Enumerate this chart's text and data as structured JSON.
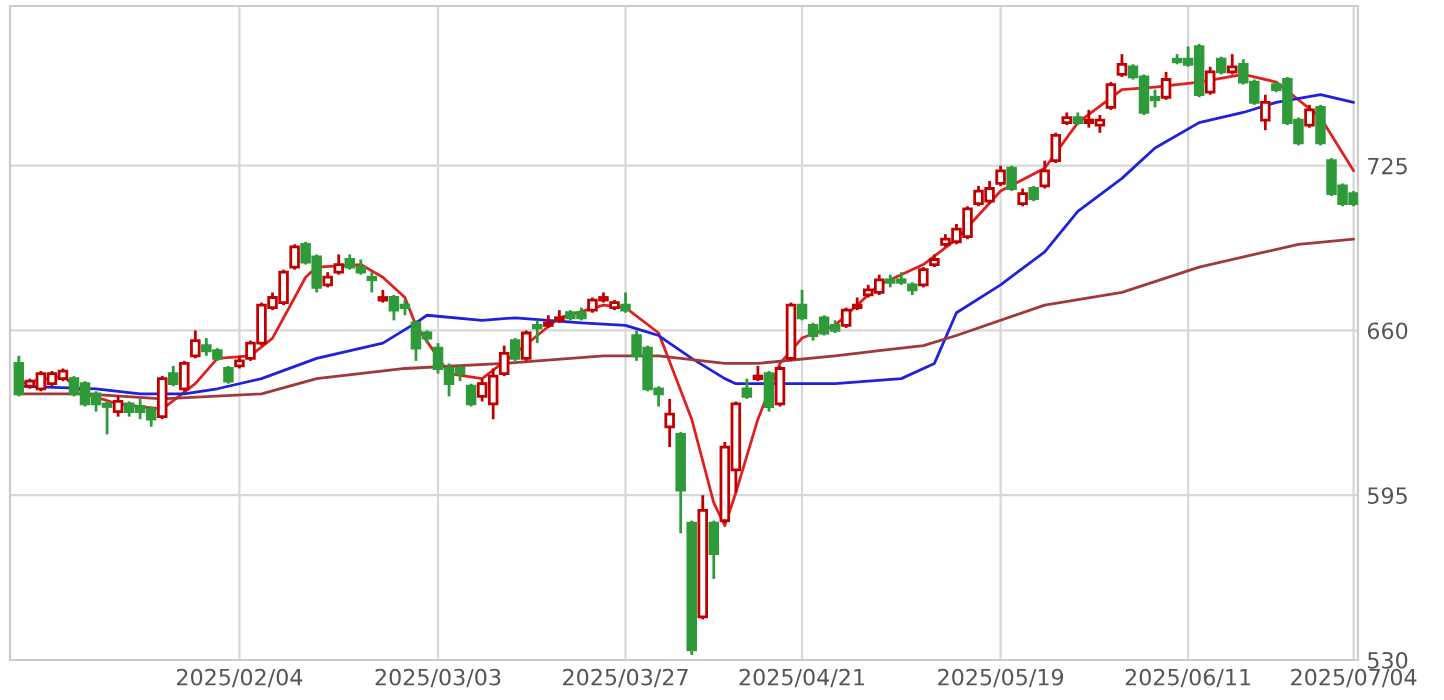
{
  "chart_data": {
    "type": "candlestick",
    "categories": [
      null,
      null,
      null,
      null,
      null,
      null,
      null,
      null,
      null,
      null,
      null,
      null,
      null,
      null,
      null,
      null,
      null,
      null,
      null,
      null,
      "2025/02/04",
      null,
      null,
      null,
      null,
      null,
      null,
      null,
      null,
      null,
      null,
      null,
      null,
      null,
      null,
      null,
      null,
      null,
      "2025/03/03",
      null,
      null,
      null,
      null,
      null,
      null,
      null,
      null,
      null,
      null,
      null,
      null,
      null,
      null,
      null,
      null,
      "2025/03/27",
      null,
      null,
      null,
      null,
      null,
      null,
      null,
      null,
      null,
      null,
      null,
      null,
      null,
      null,
      null,
      "2025/04/21",
      null,
      null,
      null,
      null,
      null,
      null,
      null,
      null,
      null,
      null,
      null,
      null,
      null,
      null,
      null,
      null,
      null,
      "2025/05/19",
      null,
      null,
      null,
      null,
      null,
      null,
      null,
      null,
      null,
      null,
      null,
      null,
      null,
      null,
      null,
      null,
      "2025/06/11",
      null,
      null,
      null,
      null,
      null,
      null,
      null,
      null,
      null,
      null,
      null,
      null,
      null,
      null,
      "2025/07/04"
    ],
    "ohlc": [
      [
        647,
        650,
        634,
        635
      ],
      [
        638,
        641,
        637,
        640
      ],
      [
        637,
        644,
        636,
        643
      ],
      [
        639,
        644,
        638,
        643
      ],
      [
        641,
        645,
        640,
        644
      ],
      [
        641,
        642,
        634,
        635
      ],
      [
        639,
        640,
        630,
        631
      ],
      [
        635,
        636,
        628,
        631
      ],
      [
        631,
        632,
        619,
        630
      ],
      [
        628,
        634,
        626,
        632
      ],
      [
        631,
        632,
        626,
        628
      ],
      [
        630,
        633,
        625,
        628
      ],
      [
        629,
        630,
        622,
        625
      ],
      [
        626,
        642,
        625,
        641
      ],
      [
        643,
        646,
        638,
        639
      ],
      [
        637,
        648,
        636,
        647
      ],
      [
        650,
        660,
        649,
        656
      ],
      [
        654,
        657,
        650,
        652
      ],
      [
        652,
        653,
        648,
        649
      ],
      [
        645,
        646,
        639,
        640
      ],
      [
        646,
        650,
        645,
        648
      ],
      [
        649,
        656,
        648,
        655
      ],
      [
        655,
        671,
        654,
        670
      ],
      [
        669,
        675,
        668,
        673
      ],
      [
        671,
        684,
        670,
        683
      ],
      [
        685,
        694,
        684,
        693
      ],
      [
        694,
        695,
        686,
        687
      ],
      [
        689,
        690,
        675,
        677
      ],
      [
        678,
        683,
        677,
        681
      ],
      [
        683,
        690,
        682,
        686
      ],
      [
        688,
        690,
        684,
        685
      ],
      [
        685,
        688,
        682,
        683
      ],
      [
        681,
        683,
        675,
        680
      ],
      [
        672,
        676,
        671,
        673
      ],
      [
        673,
        674,
        664,
        668
      ],
      [
        670,
        672,
        666,
        669
      ],
      [
        663,
        664,
        648,
        653
      ],
      [
        659,
        660,
        655,
        657
      ],
      [
        653,
        655,
        643,
        645
      ],
      [
        645,
        647,
        634,
        639
      ],
      [
        645,
        646,
        640,
        643
      ],
      [
        638,
        639,
        630,
        631
      ],
      [
        634,
        641,
        632,
        639
      ],
      [
        631,
        645,
        625,
        642
      ],
      [
        643,
        654,
        642,
        651
      ],
      [
        656,
        657,
        648,
        649
      ],
      [
        649,
        660,
        648,
        659
      ],
      [
        662,
        664,
        655,
        661
      ],
      [
        662,
        666,
        661,
        663
      ],
      [
        664,
        668,
        663,
        665
      ],
      [
        667,
        668,
        664,
        665
      ],
      [
        667,
        669,
        664,
        665
      ],
      [
        668,
        673,
        667,
        672
      ],
      [
        672,
        675,
        671,
        673
      ],
      [
        669,
        672,
        668,
        671
      ],
      [
        670,
        675,
        667,
        668
      ],
      [
        658,
        660,
        648,
        650
      ],
      [
        653,
        654,
        636,
        637
      ],
      [
        637,
        638,
        630,
        635
      ],
      [
        622,
        633,
        614,
        627
      ],
      [
        619,
        620,
        580,
        597
      ],
      [
        584,
        585,
        532,
        534
      ],
      [
        547,
        595,
        546,
        589
      ],
      [
        584,
        585,
        562,
        572
      ],
      [
        585,
        616,
        584,
        614
      ],
      [
        605,
        632,
        596,
        631
      ],
      [
        637,
        641,
        633,
        634
      ],
      [
        641,
        646,
        640,
        642
      ],
      [
        643,
        644,
        628,
        630
      ],
      [
        631,
        646,
        630,
        645
      ],
      [
        649,
        671,
        648,
        670
      ],
      [
        670,
        676,
        664,
        665
      ],
      [
        662,
        663,
        656,
        658
      ],
      [
        665,
        666,
        658,
        659
      ],
      [
        662,
        664,
        659,
        660
      ],
      [
        662,
        669,
        661,
        668
      ],
      [
        669,
        673,
        668,
        670
      ],
      [
        674,
        678,
        673,
        676
      ],
      [
        675,
        682,
        674,
        680
      ],
      [
        680,
        682,
        677,
        679
      ],
      [
        680,
        683,
        678,
        679
      ],
      [
        678,
        679,
        674,
        676
      ],
      [
        678,
        685,
        677,
        684
      ],
      [
        686,
        690,
        685,
        688
      ],
      [
        694,
        698,
        693,
        696
      ],
      [
        695,
        702,
        694,
        700
      ],
      [
        697,
        709,
        696,
        708
      ],
      [
        710,
        717,
        709,
        715
      ],
      [
        711,
        719,
        710,
        716
      ],
      [
        718,
        725,
        717,
        723
      ],
      [
        724,
        725,
        715,
        716
      ],
      [
        710,
        716,
        709,
        714
      ],
      [
        716,
        717,
        711,
        712
      ],
      [
        717,
        727,
        716,
        723
      ],
      [
        727,
        738,
        726,
        737
      ],
      [
        742,
        746,
        741,
        744
      ],
      [
        744,
        746,
        741,
        742
      ],
      [
        742,
        747,
        740,
        743
      ],
      [
        741,
        745,
        738,
        743
      ],
      [
        748,
        758,
        747,
        757
      ],
      [
        761,
        769,
        760,
        765
      ],
      [
        764,
        765,
        759,
        760
      ],
      [
        760,
        761,
        745,
        746
      ],
      [
        752,
        755,
        748,
        751
      ],
      [
        752,
        762,
        751,
        759
      ],
      [
        767,
        769,
        765,
        766
      ],
      [
        767,
        772,
        764,
        765
      ],
      [
        772,
        773,
        752,
        753
      ],
      [
        754,
        764,
        753,
        762
      ],
      [
        767,
        768,
        761,
        762
      ],
      [
        762,
        769,
        761,
        764
      ],
      [
        765,
        767,
        757,
        758
      ],
      [
        758,
        759,
        749,
        750
      ],
      [
        743,
        753,
        739,
        750
      ],
      [
        757,
        758,
        754,
        755
      ],
      [
        759,
        760,
        741,
        742
      ],
      [
        743,
        744,
        733,
        734
      ],
      [
        741,
        749,
        740,
        747
      ],
      [
        748,
        749,
        733,
        734
      ],
      [
        727,
        728,
        713,
        714
      ],
      [
        717,
        718,
        709,
        710
      ],
      [
        714,
        715,
        709,
        710
      ]
    ],
    "series": [
      {
        "type": "line",
        "color": "#e02020",
        "values": [
          639,
          null,
          null,
          null,
          642,
          null,
          635,
          null,
          null,
          631,
          null,
          null,
          null,
          629,
          null,
          null,
          639,
          null,
          649,
          null,
          null,
          650,
          null,
          657,
          null,
          null,
          681,
          685,
          null,
          null,
          null,
          686,
          null,
          681,
          null,
          673,
          662,
          null,
          null,
          643,
          null,
          null,
          641,
          null,
          null,
          651,
          null,
          null,
          null,
          665,
          null,
          null,
          null,
          670,
          null,
          669,
          null,
          null,
          659,
          null,
          null,
          625,
          null,
          592,
          583,
          596,
          null,
          625,
          null,
          647,
          null,
          657,
          null,
          null,
          662,
          null,
          null,
          null,
          678,
          null,
          null,
          null,
          686,
          null,
          null,
          696,
          null,
          null,
          null,
          715,
          null,
          null,
          null,
          724,
          null,
          null,
          742,
          null,
          null,
          null,
          755,
          null,
          null,
          756,
          null,
          null,
          null,
          758,
          null,
          null,
          null,
          761,
          null,
          null,
          758,
          null,
          null,
          null,
          744,
          null,
          null,
          723
        ]
      },
      {
        "type": "line",
        "color": "#2020dd",
        "values": [
          638,
          null,
          null,
          null,
          null,
          null,
          null,
          637,
          null,
          null,
          null,
          635,
          null,
          null,
          null,
          635,
          null,
          null,
          637,
          null,
          null,
          null,
          641,
          null,
          null,
          null,
          null,
          649,
          null,
          null,
          null,
          null,
          null,
          655,
          null,
          null,
          663,
          666,
          null,
          null,
          null,
          null,
          664,
          null,
          null,
          665,
          null,
          null,
          null,
          null,
          null,
          663,
          null,
          null,
          null,
          662,
          null,
          null,
          658,
          null,
          null,
          649,
          null,
          null,
          641,
          639,
          null,
          null,
          639,
          null,
          null,
          null,
          null,
          null,
          639,
          null,
          null,
          null,
          null,
          null,
          641,
          null,
          null,
          647,
          null,
          667,
          null,
          null,
          null,
          678,
          null,
          null,
          null,
          691,
          null,
          null,
          707,
          null,
          null,
          null,
          720,
          null,
          null,
          732,
          null,
          null,
          null,
          742,
          null,
          null,
          null,
          746,
          null,
          null,
          750,
          null,
          null,
          null,
          753,
          null,
          null,
          750
        ]
      },
      {
        "type": "line",
        "color": "#a03a3a",
        "values": [
          635,
          null,
          null,
          null,
          null,
          null,
          635,
          null,
          null,
          null,
          null,
          null,
          null,
          633,
          null,
          null,
          null,
          null,
          null,
          null,
          null,
          null,
          635,
          null,
          null,
          null,
          null,
          641,
          null,
          null,
          null,
          null,
          null,
          null,
          null,
          645,
          null,
          null,
          null,
          null,
          null,
          null,
          null,
          null,
          647,
          null,
          null,
          null,
          null,
          null,
          null,
          null,
          null,
          650,
          null,
          null,
          null,
          null,
          650,
          null,
          null,
          null,
          null,
          null,
          647,
          null,
          null,
          647,
          null,
          null,
          null,
          null,
          null,
          null,
          650,
          null,
          null,
          null,
          652,
          null,
          null,
          null,
          654,
          null,
          null,
          658,
          null,
          null,
          null,
          null,
          null,
          null,
          null,
          670,
          null,
          null,
          null,
          null,
          null,
          null,
          675,
          null,
          null,
          null,
          null,
          null,
          null,
          685,
          null,
          null,
          null,
          null,
          690,
          null,
          null,
          null,
          694,
          null,
          null,
          null,
          null,
          696
        ]
      }
    ],
    "ylim": [
      530,
      788
    ],
    "yticks": [
      530,
      595,
      660,
      725
    ],
    "grid": true,
    "legend": false
  }
}
